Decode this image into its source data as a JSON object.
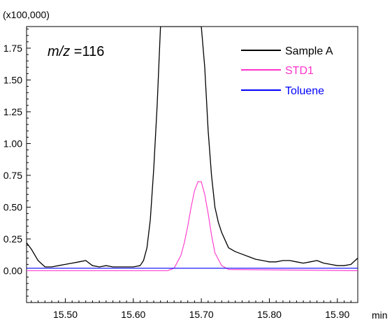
{
  "chart_data": {
    "type": "line",
    "title": "",
    "xlabel": "",
    "ylabel": "",
    "y_multiplier_label": "(x100,000)",
    "x_unit_label": "min",
    "annotation": {
      "prefix": "m/z",
      "suffix": " =116"
    },
    "xlim": [
      15.443,
      15.93
    ],
    "ylim": [
      -0.25,
      1.92
    ],
    "x_ticks": [
      "15.50",
      "15.60",
      "15.70",
      "15.80",
      "15.90"
    ],
    "x_tick_values": [
      15.5,
      15.6,
      15.7,
      15.8,
      15.9
    ],
    "y_ticks": [
      "0.00",
      "0.25",
      "0.50",
      "0.75",
      "1.00",
      "1.25",
      "1.50",
      "1.75"
    ],
    "y_tick_values": [
      0.0,
      0.25,
      0.5,
      0.75,
      1.0,
      1.25,
      1.5,
      1.75
    ],
    "grid": false,
    "legend_position": "top-right",
    "series": [
      {
        "name": "Sample A",
        "color": "#000000",
        "x": [
          15.443,
          15.45,
          15.46,
          15.47,
          15.48,
          15.49,
          15.5,
          15.51,
          15.52,
          15.53,
          15.54,
          15.55,
          15.56,
          15.57,
          15.58,
          15.59,
          15.6,
          15.61,
          15.615,
          15.62,
          15.625,
          15.63,
          15.635,
          15.64,
          15.645,
          15.7,
          15.705,
          15.71,
          15.715,
          15.72,
          15.725,
          15.73,
          15.735,
          15.74,
          15.75,
          15.76,
          15.77,
          15.78,
          15.79,
          15.8,
          15.81,
          15.82,
          15.83,
          15.84,
          15.85,
          15.86,
          15.87,
          15.88,
          15.89,
          15.9,
          15.91,
          15.92,
          15.93
        ],
        "y": [
          0.22,
          0.17,
          0.08,
          0.03,
          0.03,
          0.04,
          0.05,
          0.06,
          0.07,
          0.08,
          0.04,
          0.03,
          0.04,
          0.03,
          0.03,
          0.03,
          0.03,
          0.04,
          0.08,
          0.18,
          0.4,
          0.8,
          1.3,
          1.92,
          1.92,
          1.92,
          1.6,
          1.1,
          0.75,
          0.5,
          0.38,
          0.3,
          0.24,
          0.18,
          0.15,
          0.13,
          0.11,
          0.09,
          0.08,
          0.07,
          0.07,
          0.08,
          0.08,
          0.07,
          0.06,
          0.07,
          0.08,
          0.06,
          0.05,
          0.04,
          0.04,
          0.05,
          0.1
        ]
      },
      {
        "name": "STD1",
        "color": "#ff33cc",
        "x": [
          15.443,
          15.65,
          15.66,
          15.67,
          15.675,
          15.68,
          15.685,
          15.69,
          15.695,
          15.7,
          15.705,
          15.71,
          15.715,
          15.72,
          15.73,
          15.74,
          15.93
        ],
        "y": [
          0.0,
          0.0,
          0.02,
          0.12,
          0.22,
          0.35,
          0.5,
          0.63,
          0.7,
          0.7,
          0.6,
          0.45,
          0.28,
          0.14,
          0.04,
          0.01,
          0.0
        ]
      },
      {
        "name": "Toluene",
        "color": "#0000ff",
        "x": [
          15.443,
          15.5,
          15.55,
          15.6,
          15.65,
          15.7,
          15.75,
          15.8,
          15.85,
          15.9,
          15.93
        ],
        "y": [
          0.02,
          0.02,
          0.02,
          0.02,
          0.02,
          0.02,
          0.02,
          0.02,
          0.02,
          0.02,
          0.02
        ]
      }
    ]
  }
}
